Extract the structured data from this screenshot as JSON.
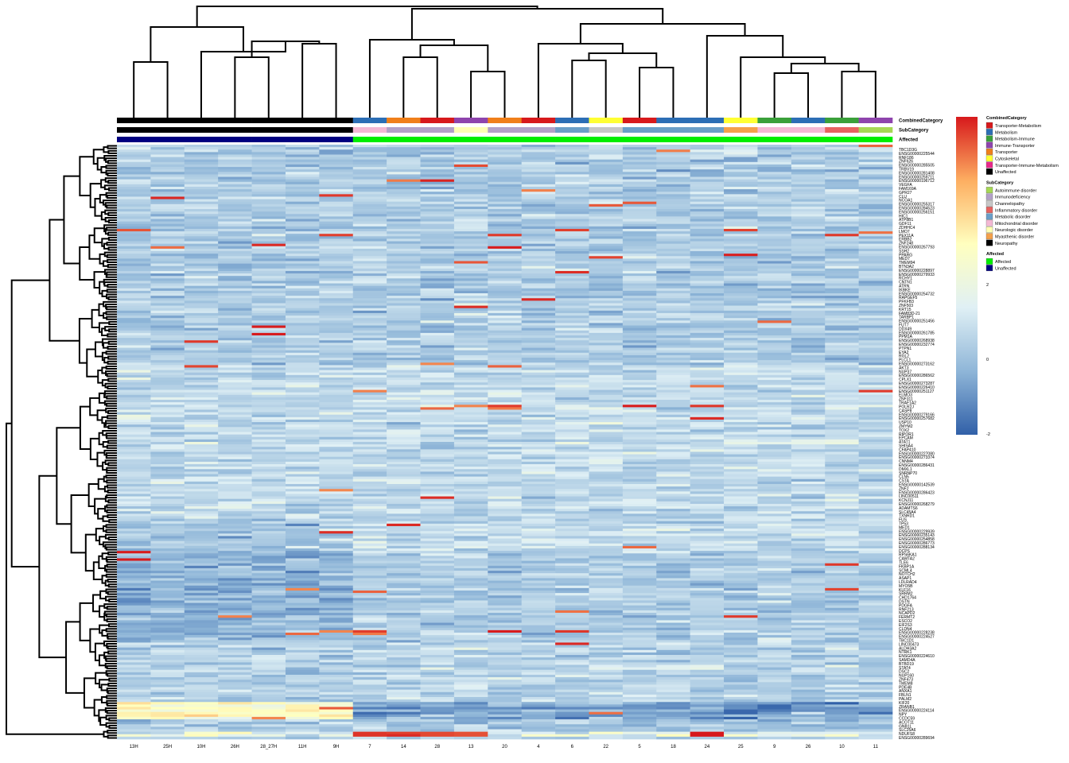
{
  "chart_data": {
    "type": "heatmap",
    "columns": [
      "13H",
      "25H",
      "10H",
      "26H",
      "28_27H",
      "11H",
      "9H",
      "7",
      "14",
      "28",
      "13",
      "20",
      "4",
      "6",
      "22",
      "5",
      "18",
      "24",
      "25",
      "9",
      "26",
      "10",
      "11"
    ],
    "annotation_tracks": [
      {
        "name": "CombinedCategory",
        "values": [
          "Unaffected",
          "Unaffected",
          "Unaffected",
          "Unaffected",
          "Unaffected",
          "Unaffected",
          "Unaffected",
          "Metabolism",
          "Transporter",
          "Transporter-Metabolism",
          "Immune-Transporter",
          "Transporter",
          "Transporter-Metabolism",
          "Metabolism",
          "Cytoskeletal",
          "Transporter-Metabolism",
          "Metabolism",
          "Metabolism",
          "Cytoskeletal",
          "Metabolism-Immune",
          "Metabolism",
          "Metabolism-Immune",
          "Immune-Transporter"
        ]
      },
      {
        "name": "SubCategory",
        "values": [
          "Neuropathy",
          "Neuropathy",
          "Neuropathy",
          "Neuropathy",
          "Neuropathy",
          "Neuropathy",
          "Neuropathy",
          "Mitochondrial disorder",
          "Immunodeficiency",
          "Immunodeficiency",
          "Neurologic disorder",
          "Immunodeficiency",
          "Immunodeficiency",
          "Metabolic disorder",
          "Channelopathy",
          "Metabolic disorder",
          "Metabolic disorder",
          "Metabolic disorder",
          "Myasthenic disorder",
          "Mitochondrial disorder",
          "Mitochondrial disorder",
          "Inflammatory disorder",
          "Autoimmune disorder"
        ]
      },
      {
        "name": "Affected",
        "values": [
          "Unaffected",
          "Unaffected",
          "Unaffected",
          "Unaffected",
          "Unaffected",
          "Unaffected",
          "Unaffected",
          "Affected",
          "Affected",
          "Affected",
          "Affected",
          "Affected",
          "Affected",
          "Affected",
          "Affected",
          "Affected",
          "Affected",
          "Affected",
          "Affected",
          "Affected",
          "Affected",
          "Affected",
          "Affected"
        ]
      }
    ],
    "legends": [
      {
        "title": "CombinedCategory",
        "items": [
          {
            "label": "Transporter-Metabolism",
            "color": "#d7191c"
          },
          {
            "label": "Metabolism",
            "color": "#2c6eb5"
          },
          {
            "label": "Metabolism-Immune",
            "color": "#3aa03a"
          },
          {
            "label": "Immune-Transporter",
            "color": "#8e44ad"
          },
          {
            "label": "Transporter",
            "color": "#f07f1a"
          },
          {
            "label": "Cytoskeletal",
            "color": "#ffff33"
          },
          {
            "label": "Transporter-Immune-Metabolism",
            "color": "#e7298a"
          },
          {
            "label": "Unaffected",
            "color": "#000000"
          }
        ]
      },
      {
        "title": "SubCategory",
        "items": [
          {
            "label": "Autoimmune disorder",
            "color": "#a6d854"
          },
          {
            "label": "Immunodeficiency",
            "color": "#b3a0c8"
          },
          {
            "label": "Channelopathy",
            "color": "#c7c7c7"
          },
          {
            "label": "Inflammatory disorder",
            "color": "#e7625f"
          },
          {
            "label": "Metabolic disorder",
            "color": "#6a9ec8"
          },
          {
            "label": "Mitochondrial disorder",
            "color": "#f4b8d4"
          },
          {
            "label": "Neurologic disorder",
            "color": "#ffffb3"
          },
          {
            "label": "Myasthenic disorder",
            "color": "#f4a04a"
          },
          {
            "label": "Neuropathy",
            "color": "#000000"
          }
        ]
      },
      {
        "title": "Affected",
        "items": [
          {
            "label": "Affected",
            "color": "#00ee00"
          },
          {
            "label": "Unaffected",
            "color": "#000080"
          }
        ]
      }
    ],
    "color_scale": {
      "min": -2,
      "mid": 0,
      "max": 2,
      "ticks": [
        "2",
        "0",
        "-2"
      ],
      "colors": [
        "#3160a8",
        "#8fb6d8",
        "#e0f0f5",
        "#ffffbf",
        "#fdae61",
        "#d7191c"
      ]
    },
    "row_labels": [
      "TBC1D3G",
      "ENSG00000225544",
      "RNF186",
      "ZNF626",
      "ENSG00000285505",
      "TRBV19",
      "ENSG00000281408",
      "ENSG00000259711",
      "ENSG00000196712",
      "VEGFA",
      "FAM169A",
      "GPR27",
      "CLU",
      "NCOA1",
      "ENSG00000255317",
      "ENSG00000284523",
      "ENSG00000256151",
      "HIC1",
      "ATP8B1",
      "GDF11",
      "ZDHHC4",
      "LMO7",
      "PEX11A",
      "ERBB2",
      "ZNF248",
      "ENSG00000267793",
      "SSH2",
      "PPARG",
      "MED7",
      "TMEM94",
      "BTN3A2",
      "ENSG00000228897",
      "ENSG00000279933",
      "RCHY1",
      "CNTN1",
      "ATRN",
      "IKBKE",
      "ENSG00000254732",
      "RAPGEF5",
      "PFKFB3",
      "ZNF503",
      "KRT15",
      "FAM83D-21",
      "TARBP1",
      "ENSG00000251456",
      "FUT7",
      "DDX49",
      "ENSG00000261785",
      "PPM1A",
      "ENSG00000268938",
      "ENSG00000232774",
      "PTPN1",
      "EYA2",
      "RGL2",
      "PLCL1",
      "ENSG00000273162",
      "AKT3",
      "NUP37",
      "ENSG00000286562",
      "CPLX1",
      "ENSG00000273287",
      "ENSG00000226410",
      "ENSG00000251127",
      "ELMO3",
      "ZNF311",
      "TRAF1A2",
      "POLR2J",
      "CASP8",
      "ENSG00000279166",
      "ENSG00000257682",
      "USP10",
      "ZMYM2",
      "TOX2",
      "RIPOR1",
      "EPCAM",
      "ATAT1",
      "SHISA4",
      "CFAP410",
      "ENSG00000227080",
      "ENSG00000273374",
      "CNNM4",
      "ENSG00000286431",
      "DMXL1",
      "SNRNP70",
      "CLN5",
      "CSTA",
      "ENSG00000142539",
      "ZNF2",
      "ENSG00000286423",
      "LINC00511",
      "KCNJ11",
      "ENSG00000268279",
      "ADAMTS6",
      "SLC45A4",
      "TXNRD1",
      "FUS",
      "TP53",
      "MED1",
      "ENSG00000229939",
      "ENSG00000235143",
      "ENSG00000254858",
      "ENSG00000286773",
      "ENSG00000288134",
      "DCPS",
      "RPS6KA1",
      "CAMTA2",
      "TLE6",
      "FKBP1A",
      "SCML4",
      "NOTCH2",
      "ASAP1",
      "LDLRAD4",
      "MYO5B",
      "KLF16",
      "SRRM2",
      "CHD1764",
      "DSTN",
      "PDGFA",
      "RNF213",
      "NCAPD2",
      "FERMT2",
      "ESCO2",
      "EIF2S3",
      "CLDN4",
      "ENSG00000228238",
      "ENSG00000224527",
      "TBC1D1",
      "LINC00473",
      "ALDH3A2",
      "NTRK1",
      "ENSG00000224610",
      "SAMD4A",
      "BTBD19",
      "STAT4",
      "DSC2",
      "NUP160",
      "ZNF473",
      "TMEM8",
      "PDE4B",
      "ANXA1",
      "FBLN1",
      "PALM2",
      "KIF20",
      "ZRANB1",
      "ENSG00000224114",
      "NPY",
      "CCDC59",
      "ACOT11",
      "GNB1L",
      "SLC25A6",
      "NDUFS8",
      "ENSG00000289694"
    ]
  }
}
